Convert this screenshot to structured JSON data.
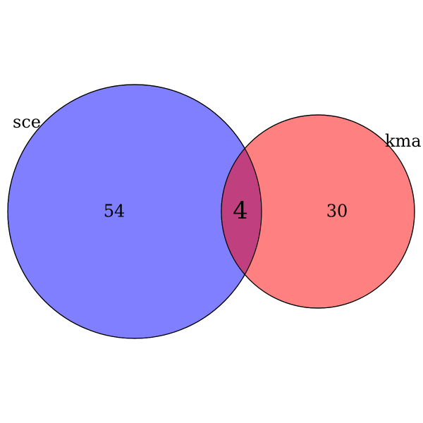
{
  "venn": {
    "sets": [
      {
        "name": "sce",
        "only_count": "54",
        "color": "#7f7fff"
      },
      {
        "name": "kma",
        "only_count": "30",
        "color": "#ff8080"
      }
    ],
    "overlap_count": "4",
    "overlap_color": "#c0407f",
    "stroke_color": "#000000"
  }
}
